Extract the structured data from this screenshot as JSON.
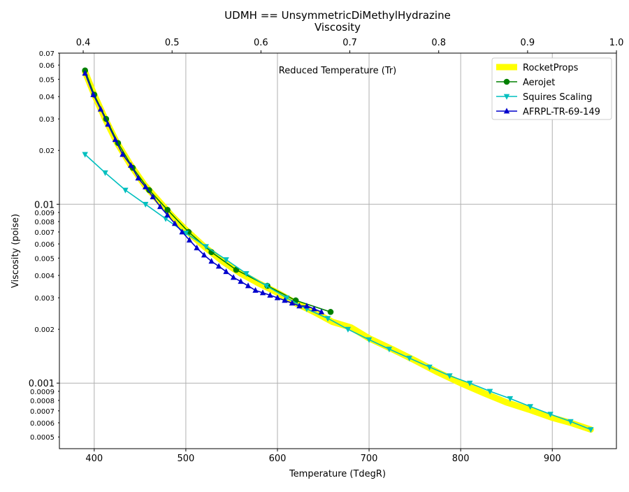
{
  "chart_data": {
    "type": "line",
    "title": "UDMH == UnsymmetricDiMethylHydrazine",
    "subtitle": "Viscosity",
    "xlabel": "Temperature (TdegR)",
    "ylabel": "Viscosity (poise)",
    "top_xlabel": "Reduced Temperature (Tr)",
    "xlim": [
      362,
      970
    ],
    "ylim": [
      0.00043,
      0.07
    ],
    "y_scale": "log",
    "grid": true,
    "legend_position": "top-right",
    "x_ticks": [
      400,
      500,
      600,
      700,
      800,
      900
    ],
    "x_tick_labels": [
      "400",
      "500",
      "600",
      "700",
      "800",
      "900"
    ],
    "top_ticks": [
      0.4,
      0.5,
      0.6,
      0.7,
      0.8,
      0.9,
      1.0
    ],
    "top_tick_labels": [
      "0.4",
      "0.5",
      "0.6",
      "0.7",
      "0.8",
      "0.9",
      "1.0"
    ],
    "top_to_bottom": {
      "tr_at_400": 0.4124,
      "tr_at_900": 0.9278
    },
    "y_major_ticks": [
      0.001,
      0.01
    ],
    "y_major_labels": [
      "0.001",
      "0.01"
    ],
    "y_minor_ticks": [
      0.0005,
      0.0006,
      0.0007,
      0.0008,
      0.0009,
      0.002,
      0.003,
      0.004,
      0.005,
      0.006,
      0.007,
      0.008,
      0.009,
      0.02,
      0.03,
      0.04,
      0.05,
      0.06,
      0.07
    ],
    "y_minor_labels": [
      "0.0005",
      "0.0006",
      "0.0007",
      "0.0008",
      "0.0009",
      "0.002",
      "0.003",
      "0.004",
      "0.005",
      "0.006",
      "0.007",
      "0.008",
      "0.009",
      "0.02",
      "0.03",
      "0.04",
      "0.05",
      "0.06",
      "0.07"
    ],
    "series": [
      {
        "name": "RocketProps",
        "color": "#ffff00",
        "marker": "none",
        "line_width": 9,
        "x": [
          390,
          400,
          412,
          425,
          440,
          455,
          470,
          485,
          500,
          520,
          540,
          560,
          580,
          600,
          620,
          640,
          660,
          680,
          700,
          725,
          750,
          775,
          800,
          825,
          850,
          875,
          900,
          920,
          942
        ],
        "y": [
          0.055,
          0.041,
          0.03,
          0.022,
          0.0165,
          0.0128,
          0.0105,
          0.0086,
          0.0072,
          0.0058,
          0.0048,
          0.0041,
          0.0036,
          0.0032,
          0.0028,
          0.0025,
          0.0022,
          0.00205,
          0.00178,
          0.00155,
          0.00134,
          0.00115,
          0.001,
          0.00088,
          0.00078,
          0.00071,
          0.00064,
          0.0006,
          0.00055
        ]
      },
      {
        "name": "Aerojet",
        "color": "#008000",
        "marker": "circle",
        "x": [
          390,
          400,
          413,
          426,
          442,
          460,
          480,
          503,
          528,
          555,
          589,
          620,
          658
        ],
        "y": [
          0.056,
          0.041,
          0.03,
          0.022,
          0.016,
          0.012,
          0.0093,
          0.007,
          0.0054,
          0.0043,
          0.0035,
          0.0029,
          0.0025
        ]
      },
      {
        "name": "Squires Scaling",
        "color": "#00bfbf",
        "marker": "triangle-down",
        "x": [
          390,
          412,
          434,
          456,
          478,
          500,
          522,
          544,
          566,
          588,
          610,
          632,
          655,
          677,
          700,
          722,
          744,
          766,
          788,
          810,
          832,
          854,
          876,
          898,
          920,
          942
        ],
        "y": [
          0.019,
          0.015,
          0.012,
          0.01,
          0.0083,
          0.0069,
          0.0058,
          0.0049,
          0.0041,
          0.0035,
          0.003,
          0.0026,
          0.0023,
          0.002,
          0.00175,
          0.00155,
          0.00138,
          0.00123,
          0.0011,
          0.001,
          0.0009,
          0.00082,
          0.00074,
          0.00067,
          0.00061,
          0.00055
        ]
      },
      {
        "name": "AFRPL-TR-69-149",
        "color": "#0000cc",
        "marker": "triangle-up",
        "x": [
          390,
          399,
          407,
          415,
          423,
          431,
          440,
          448,
          456,
          464,
          472,
          480,
          488,
          496,
          504,
          512,
          520,
          528,
          536,
          544,
          552,
          560,
          568,
          576,
          584,
          592,
          600,
          608,
          616,
          624,
          632,
          640,
          648
        ],
        "y": [
          0.054,
          0.041,
          0.034,
          0.028,
          0.023,
          0.019,
          0.0165,
          0.014,
          0.0125,
          0.011,
          0.0097,
          0.0087,
          0.0078,
          0.007,
          0.0063,
          0.0057,
          0.0052,
          0.0048,
          0.0045,
          0.0042,
          0.0039,
          0.0037,
          0.0035,
          0.0033,
          0.0032,
          0.0031,
          0.003,
          0.0029,
          0.0028,
          0.0027,
          0.0027,
          0.0026,
          0.0025
        ]
      }
    ]
  }
}
